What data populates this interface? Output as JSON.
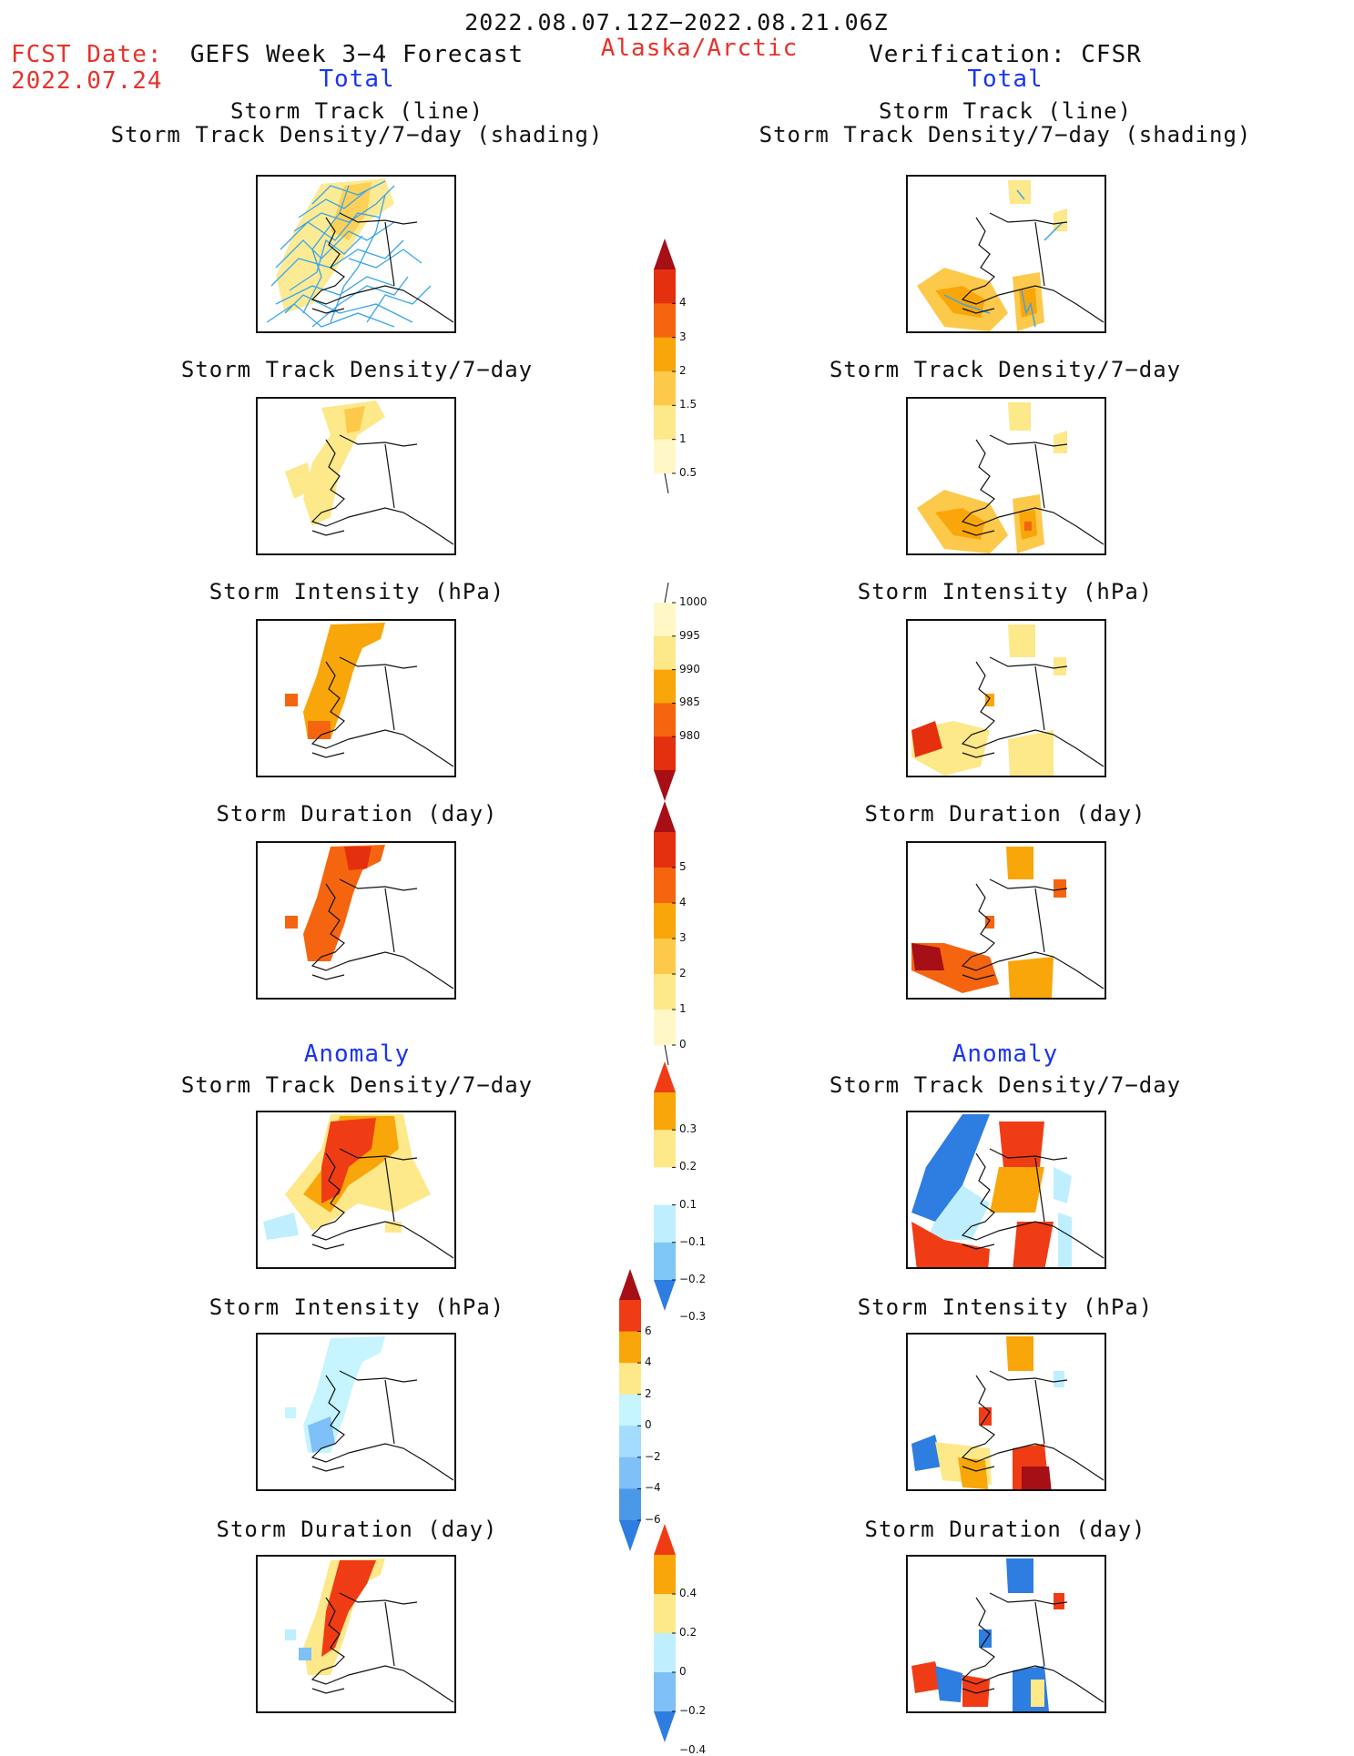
{
  "header": {
    "date_range": "2022.08.07.12Z−2022.08.21.06Z",
    "fcst_label": "FCST Date:",
    "fcst_date": "2022.07.24",
    "left_model": "GEFS Week 3−4 Forecast",
    "region": "Alaska/Arctic",
    "right_model": "Verification: CFSR",
    "left_total": "Total",
    "right_total": "Total"
  },
  "sections": {
    "anomaly_left": "Anomaly",
    "anomaly_right": "Anomaly"
  },
  "panel_titles": {
    "track_line_1": "Storm Track (line)",
    "track_line_2": "Storm Track Density/7−day (shading)",
    "track_density": "Storm Track Density/7−day",
    "intensity": "Storm Intensity (hPa)",
    "duration": "Storm Duration (day)"
  },
  "colorbars": {
    "density": {
      "labels": [
        "4",
        "3",
        "2",
        "1.5",
        "1",
        "0.5"
      ],
      "colors": [
        "#a50f15",
        "#e4300f",
        "#f5650f",
        "#f9a60a",
        "#fcc94a",
        "#fde88a",
        "#fff8c6"
      ]
    },
    "intensity": {
      "labels": [
        "1000",
        "995",
        "990",
        "985",
        "980"
      ],
      "colors": [
        "#fff8c6",
        "#fde88a",
        "#f9a60a",
        "#f5650f",
        "#e4300f",
        "#a50f15"
      ]
    },
    "duration": {
      "labels": [
        "5",
        "4",
        "3",
        "2",
        "1",
        "0"
      ],
      "colors": [
        "#a50f15",
        "#e4300f",
        "#f5650f",
        "#f9a60a",
        "#fcc94a",
        "#fde88a",
        "#fff8c6"
      ]
    },
    "anom_density": {
      "labels": [
        "0.3",
        "0.2",
        "0.1",
        "−0.1",
        "−0.2",
        "−0.3"
      ],
      "colors": [
        "#f03c14",
        "#f9a60a",
        "#fde88a",
        "#ffffff",
        "#bfefff",
        "#7ec8f7",
        "#2e7de0"
      ]
    },
    "anom_intensity": {
      "labels": [
        "6",
        "4",
        "2",
        "0",
        "−2",
        "−4",
        "−6"
      ],
      "colors": [
        "#a50f15",
        "#f03c14",
        "#f9a60a",
        "#fde88a",
        "#c6f4ff",
        "#a3dcff",
        "#7ec0f7",
        "#4a98e8",
        "#2e7de0"
      ]
    },
    "anom_duration": {
      "labels": [
        "0.4",
        "0.2",
        "0",
        "−0.2",
        "−0.4"
      ],
      "colors": [
        "#f03c14",
        "#f9a60a",
        "#fde88a",
        "#bfefff",
        "#7ec0f7",
        "#2e7de0"
      ]
    }
  }
}
